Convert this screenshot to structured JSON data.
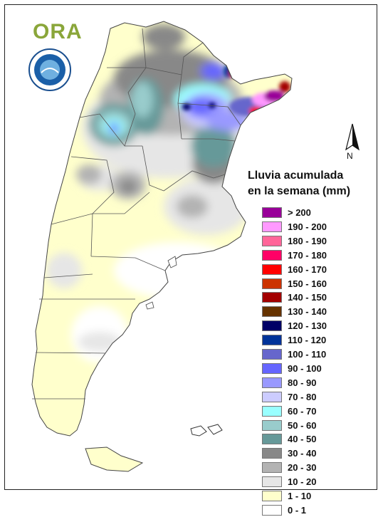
{
  "logo": {
    "text": "ORA"
  },
  "compass": {
    "label": "N"
  },
  "legend": {
    "title_line1": "Lluvia acumulada",
    "title_line2": "en la semana (mm)",
    "classes": [
      {
        "label": "> 200",
        "color": "#990099"
      },
      {
        "label": "190 - 200",
        "color": "#ff99ff"
      },
      {
        "label": "180 - 190",
        "color": "#ff6699"
      },
      {
        "label": "170 - 180",
        "color": "#ff0066"
      },
      {
        "label": "160 - 170",
        "color": "#ff0000"
      },
      {
        "label": "150 - 160",
        "color": "#cc3300"
      },
      {
        "label": "140 - 150",
        "color": "#a30000"
      },
      {
        "label": "130 - 140",
        "color": "#663300"
      },
      {
        "label": "120 - 130",
        "color": "#000066"
      },
      {
        "label": "110 - 120",
        "color": "#003399"
      },
      {
        "label": "100 - 110",
        "color": "#6666cc"
      },
      {
        "label": "90 - 100",
        "color": "#6666ff"
      },
      {
        "label": "80 - 90",
        "color": "#9999ff"
      },
      {
        "label": "70 - 80",
        "color": "#ccccff"
      },
      {
        "label": "60 - 70",
        "color": "#99ffff"
      },
      {
        "label": "50 - 60",
        "color": "#99cccc"
      },
      {
        "label": "40 - 50",
        "color": "#669999"
      },
      {
        "label": "30 - 40",
        "color": "#888888"
      },
      {
        "label": "20 - 30",
        "color": "#b3b3b3"
      },
      {
        "label": "10 - 20",
        "color": "#e6e6e6"
      },
      {
        "label": "1 - 10",
        "color": "#ffffcc"
      },
      {
        "label": "0 - 1",
        "color": "#ffffff"
      }
    ]
  }
}
